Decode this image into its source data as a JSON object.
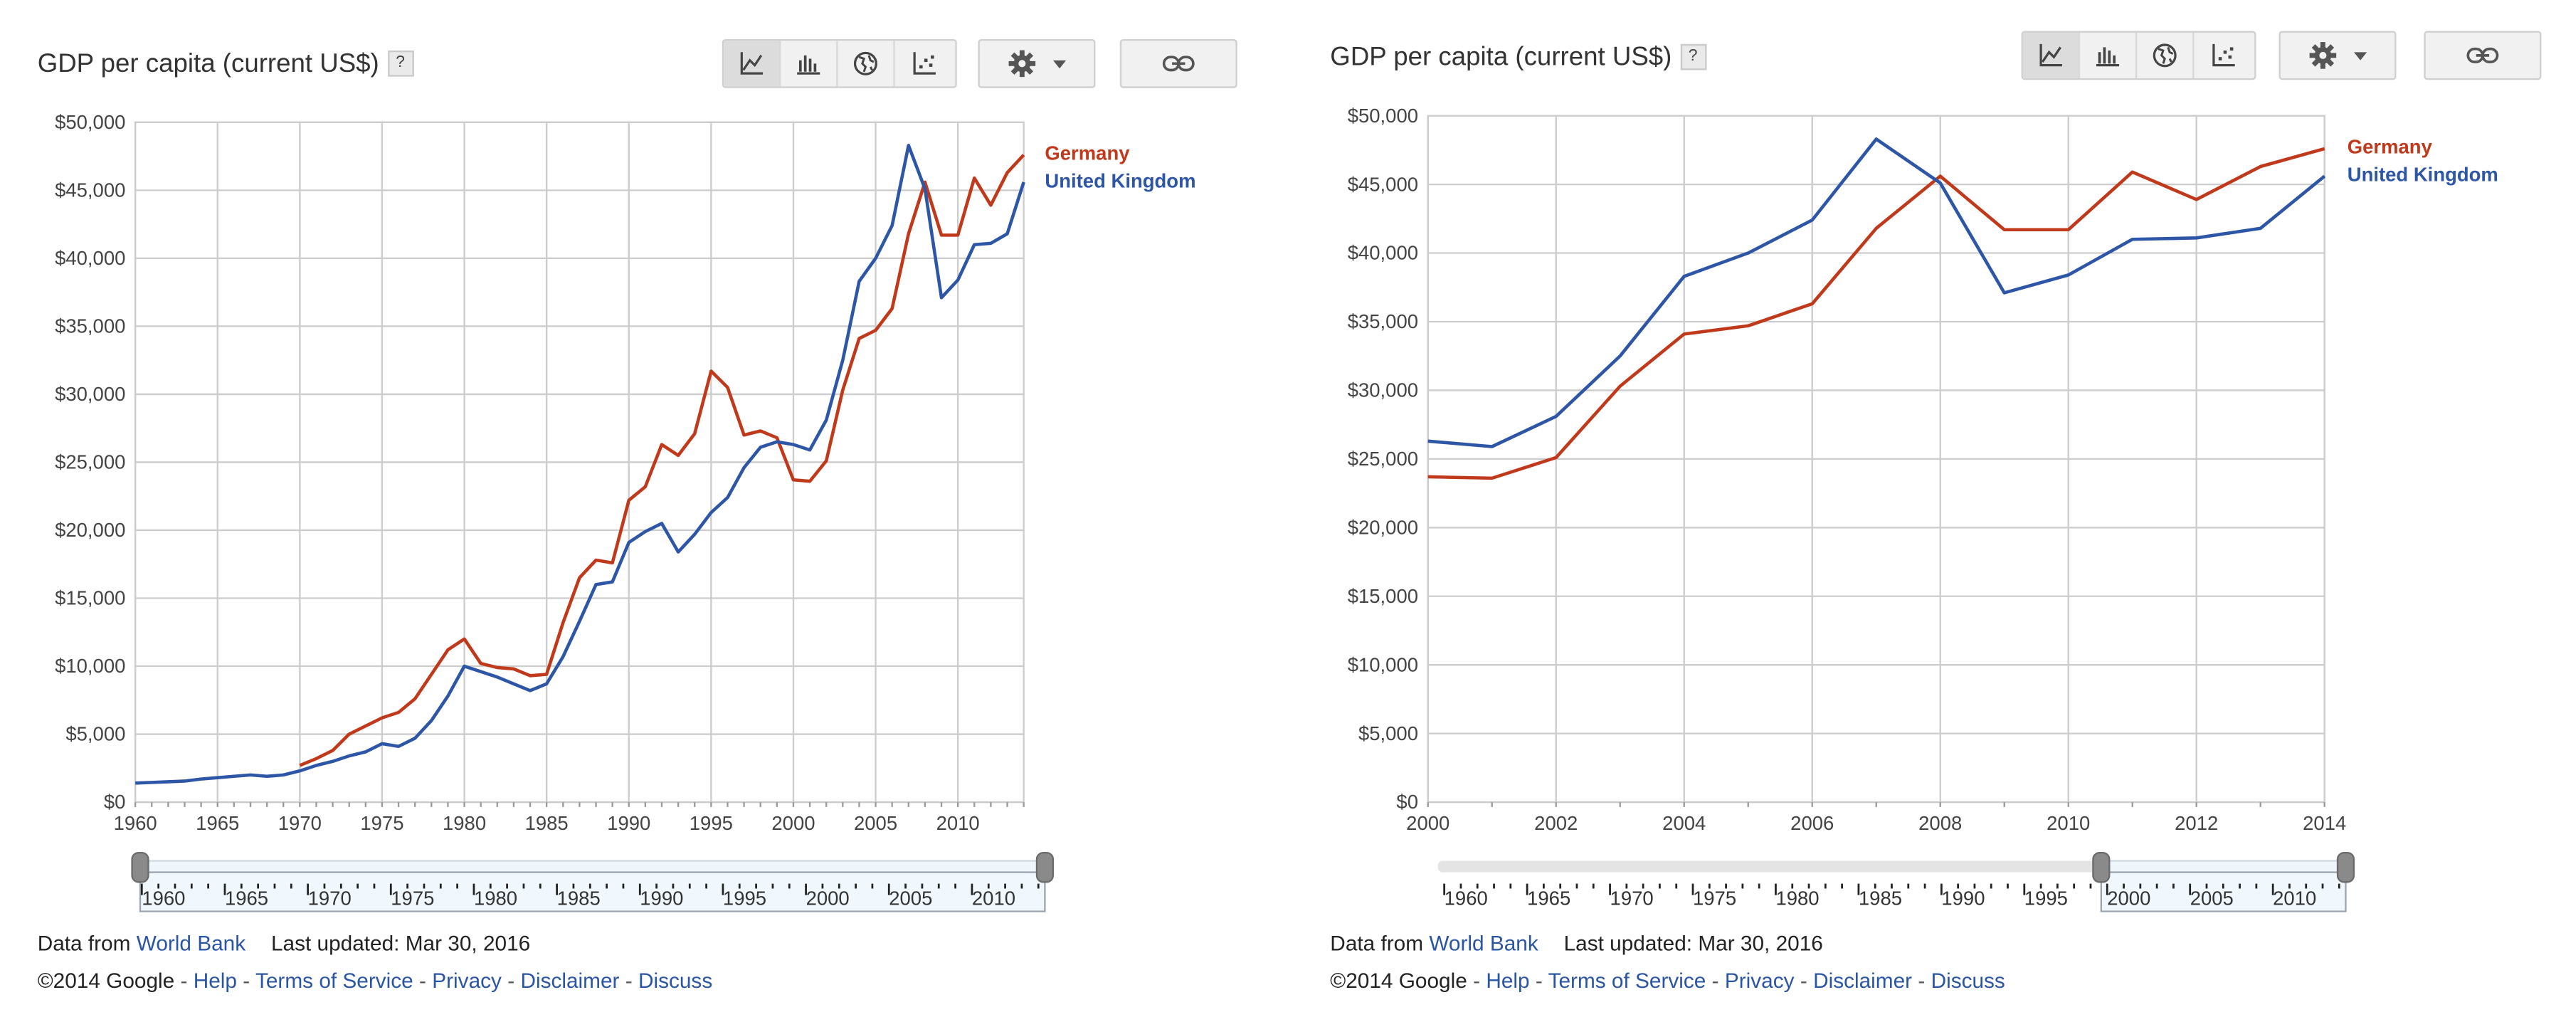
{
  "panels": [
    {
      "title": "GDP per capita (current US$)",
      "help_label": "?",
      "toolbar": {
        "icons": [
          "line-chart-icon",
          "bar-chart-icon",
          "globe-icon",
          "scatter-icon"
        ],
        "active": 0
      },
      "settings_icon": "gear-icon",
      "link_icon": "chain-link-icon",
      "slider": {
        "labels": [
          "1960",
          "1965",
          "1970",
          "1975",
          "1980",
          "1985",
          "1990",
          "1995",
          "2000",
          "2005",
          "2010"
        ],
        "range_start": 1960,
        "range_end": 2014
      },
      "footer": {
        "data_from": "Data from",
        "source": "World Bank",
        "updated": "Last updated: Mar 30, 2016",
        "copyright": "©2014 Google",
        "links": [
          "Help",
          "Terms of Service",
          "Privacy",
          "Disclaimer",
          "Discuss"
        ]
      }
    },
    {
      "title": "GDP per capita (current US$)",
      "help_label": "?",
      "toolbar": {
        "icons": [
          "line-chart-icon",
          "bar-chart-icon",
          "globe-icon",
          "scatter-icon"
        ],
        "active": 0
      },
      "settings_icon": "gear-icon",
      "link_icon": "chain-link-icon",
      "slider": {
        "labels": [
          "1960",
          "1965",
          "1970",
          "1975",
          "1980",
          "1985",
          "1990",
          "1995",
          "2000",
          "2005",
          "2010"
        ],
        "range_start": 2000,
        "range_end": 2014
      },
      "footer": {
        "data_from": "Data from",
        "source": "World Bank",
        "updated": "Last updated: Mar 30, 2016",
        "copyright": "©2014 Google",
        "links": [
          "Help",
          "Terms of Service",
          "Privacy",
          "Disclaimer",
          "Discuss"
        ]
      }
    }
  ],
  "chart_data": [
    {
      "type": "line",
      "title": "GDP per capita (current US$)",
      "xlim": [
        1960,
        2014
      ],
      "ylim": [
        0,
        50000
      ],
      "x_ticks": [
        "1960",
        "1965",
        "1970",
        "1975",
        "1980",
        "1985",
        "1990",
        "1995",
        "2000",
        "2005",
        "2010"
      ],
      "y_ticks": [
        "$0",
        "$5,000",
        "$10,000",
        "$15,000",
        "$20,000",
        "$25,000",
        "$30,000",
        "$35,000",
        "$40,000",
        "$45,000",
        "$50,000"
      ],
      "grid": true,
      "legend_position": "right",
      "series": [
        {
          "name": "Germany",
          "color": "#c0391b",
          "x": [
            1970,
            1971,
            1972,
            1973,
            1974,
            1975,
            1976,
            1977,
            1978,
            1979,
            1980,
            1981,
            1982,
            1983,
            1984,
            1985,
            1986,
            1987,
            1988,
            1989,
            1990,
            1991,
            1992,
            1993,
            1994,
            1995,
            1996,
            1997,
            1998,
            1999,
            2000,
            2001,
            2002,
            2003,
            2004,
            2005,
            2006,
            2007,
            2008,
            2009,
            2010,
            2011,
            2012,
            2013,
            2014
          ],
          "y": [
            2700,
            3200,
            3800,
            5000,
            5600,
            6200,
            6600,
            7600,
            9400,
            11200,
            12000,
            10200,
            9900,
            9800,
            9300,
            9400,
            13200,
            16500,
            17800,
            17600,
            22200,
            23200,
            26300,
            25500,
            27100,
            31700,
            30500,
            27000,
            27300,
            26800,
            23700,
            23600,
            25100,
            30300,
            34100,
            34700,
            36300,
            41800,
            45600,
            41700,
            41700,
            45900,
            43900,
            46300,
            47600
          ]
        },
        {
          "name": "United Kingdom",
          "color": "#2e56a6",
          "x": [
            1960,
            1961,
            1962,
            1963,
            1964,
            1965,
            1966,
            1967,
            1968,
            1969,
            1970,
            1971,
            1972,
            1973,
            1974,
            1975,
            1976,
            1977,
            1978,
            1979,
            1980,
            1981,
            1982,
            1983,
            1984,
            1985,
            1986,
            1987,
            1988,
            1989,
            1990,
            1991,
            1992,
            1993,
            1994,
            1995,
            1996,
            1997,
            1998,
            1999,
            2000,
            2001,
            2002,
            2003,
            2004,
            2005,
            2006,
            2007,
            2008,
            2009,
            2010,
            2011,
            2012,
            2013,
            2014
          ],
          "y": [
            1400,
            1450,
            1500,
            1550,
            1700,
            1800,
            1900,
            2000,
            1900,
            2000,
            2300,
            2700,
            3000,
            3400,
            3700,
            4300,
            4100,
            4700,
            6000,
            7800,
            10000,
            9600,
            9200,
            8700,
            8200,
            8700,
            10700,
            13300,
            16000,
            16200,
            19100,
            19900,
            20500,
            18400,
            19700,
            21300,
            22400,
            24600,
            26100,
            26500,
            26300,
            25900,
            28100,
            32500,
            38300,
            40000,
            42400,
            48300,
            45100,
            37100,
            38400,
            41000,
            41100,
            41800,
            45600
          ]
        }
      ]
    },
    {
      "type": "line",
      "title": "GDP per capita (current US$)",
      "xlim": [
        2000,
        2014
      ],
      "ylim": [
        0,
        50000
      ],
      "x_ticks": [
        "2000",
        "2002",
        "2004",
        "2006",
        "2008",
        "2010",
        "2012",
        "2014"
      ],
      "y_ticks": [
        "$0",
        "$5,000",
        "$10,000",
        "$15,000",
        "$20,000",
        "$25,000",
        "$30,000",
        "$35,000",
        "$40,000",
        "$45,000",
        "$50,000"
      ],
      "grid": true,
      "legend_position": "right",
      "series": [
        {
          "name": "Germany",
          "color": "#c0391b",
          "x": [
            2000,
            2001,
            2002,
            2003,
            2004,
            2005,
            2006,
            2007,
            2008,
            2009,
            2010,
            2011,
            2012,
            2013,
            2014
          ],
          "y": [
            23700,
            23600,
            25100,
            30300,
            34100,
            34700,
            36300,
            41800,
            45600,
            41700,
            41700,
            45900,
            43900,
            46300,
            47600
          ]
        },
        {
          "name": "United Kingdom",
          "color": "#2e56a6",
          "x": [
            2000,
            2001,
            2002,
            2003,
            2004,
            2005,
            2006,
            2007,
            2008,
            2009,
            2010,
            2011,
            2012,
            2013,
            2014
          ],
          "y": [
            26300,
            25900,
            28100,
            32500,
            38300,
            40000,
            42400,
            48300,
            45100,
            37100,
            38400,
            41000,
            41100,
            41800,
            45600
          ]
        }
      ]
    }
  ]
}
